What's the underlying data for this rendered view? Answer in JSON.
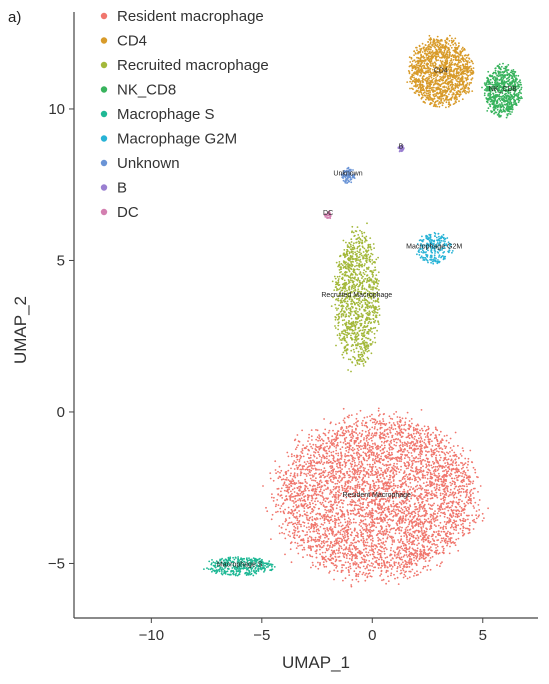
{
  "chart_data": {
    "type": "scatter",
    "panel_label": "a)",
    "title": "",
    "xlabel": "UMAP_1",
    "ylabel": "UMAP_2",
    "xlim": [
      -13.5,
      7.5
    ],
    "ylim": [
      -6.8,
      13.2
    ],
    "xticks": [
      -10,
      -5,
      0,
      5
    ],
    "yticks": [
      -5,
      0,
      5,
      10
    ],
    "grid": false,
    "legend_position": "top-left",
    "legend": [
      {
        "name": "Resident macrophage",
        "color": "#f0766d"
      },
      {
        "name": "CD4",
        "color": "#d89b2a"
      },
      {
        "name": "Recruited macrophage",
        "color": "#a3b83a"
      },
      {
        "name": "NK_CD8",
        "color": "#38b35d"
      },
      {
        "name": "Macrophage S",
        "color": "#1fb895"
      },
      {
        "name": "Macrophage G2M",
        "color": "#28b3d6"
      },
      {
        "name": "Unknown",
        "color": "#6a94d6"
      },
      {
        "name": "B",
        "color": "#9a7fd1"
      },
      {
        "name": "DC",
        "color": "#d37fb0"
      }
    ],
    "clusters": [
      {
        "name": "Resident macrophage",
        "label": "Resident Macrophage",
        "center": [
          0.2,
          -2.8
        ],
        "spread": [
          4.4,
          2.6
        ],
        "points": 4500,
        "color": "#f0766d"
      },
      {
        "name": "CD4",
        "label": "CD4",
        "center": [
          3.1,
          11.2
        ],
        "spread": [
          1.4,
          1.1
        ],
        "points": 1400,
        "color": "#d89b2a"
      },
      {
        "name": "Recruited macrophage",
        "label": "Recruited Macrophage",
        "center": [
          -0.7,
          3.8
        ],
        "spread": [
          1.0,
          2.2
        ],
        "points": 1100,
        "color": "#a3b83a"
      },
      {
        "name": "NK_CD8",
        "label": "NK_CD8",
        "center": [
          5.9,
          10.6
        ],
        "spread": [
          0.8,
          0.8
        ],
        "points": 700,
        "color": "#38b35d"
      },
      {
        "name": "Macrophage S",
        "label": "Macrophage S",
        "center": [
          -6.0,
          -5.1
        ],
        "spread": [
          1.5,
          0.3
        ],
        "points": 350,
        "color": "#1fb895"
      },
      {
        "name": "Macrophage G2M",
        "label": "Macrophage G2M",
        "center": [
          2.8,
          5.4
        ],
        "spread": [
          0.8,
          0.5
        ],
        "points": 220,
        "color": "#28b3d6"
      },
      {
        "name": "Unknown",
        "label": "Unknown",
        "center": [
          -1.1,
          7.8
        ],
        "spread": [
          0.3,
          0.25
        ],
        "points": 90,
        "color": "#6a94d6"
      },
      {
        "name": "B",
        "label": "B",
        "center": [
          1.3,
          8.7
        ],
        "spread": [
          0.15,
          0.1
        ],
        "points": 40,
        "color": "#9a7fd1"
      },
      {
        "name": "DC",
        "label": "DC",
        "center": [
          -2.0,
          6.5
        ],
        "spread": [
          0.15,
          0.12
        ],
        "points": 30,
        "color": "#d37fb0"
      }
    ]
  }
}
